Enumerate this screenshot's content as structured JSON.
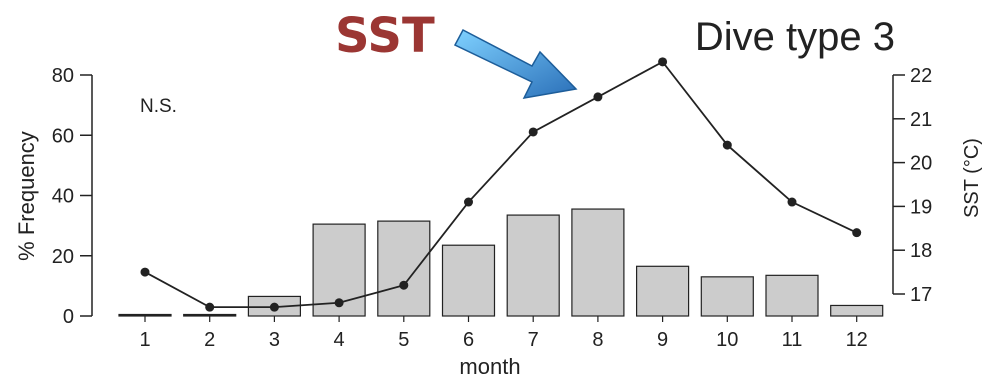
{
  "chart_data": {
    "type": "bar",
    "title": "Dive type 3",
    "annotation": "N.S.",
    "callout": {
      "label": "SST",
      "label_color": "#9b3633",
      "arrow_color": "#3a8fd6"
    },
    "categories": [
      "1",
      "2",
      "3",
      "4",
      "5",
      "6",
      "7",
      "8",
      "9",
      "10",
      "11",
      "12"
    ],
    "xlabel": "month",
    "ylabel": "% Frequency",
    "ylim": [
      0,
      80
    ],
    "yticks": [
      "0",
      "20",
      "40",
      "60",
      "80"
    ],
    "y2label": "SST (°C)",
    "y2lim": [
      17,
      22
    ],
    "y2ticks": [
      "17",
      "18",
      "19",
      "20",
      "21",
      "22"
    ],
    "series": [
      {
        "type": "bar",
        "values": [
          0.5,
          0.3,
          6.5,
          30.5,
          31.5,
          23.5,
          33.5,
          35.5,
          16.5,
          13,
          13.5,
          3.5
        ],
        "color": "#cccccc"
      },
      {
        "type": "line",
        "axis": "right",
        "values": [
          17.5,
          16.7,
          16.7,
          16.8,
          17.2,
          19.1,
          20.7,
          21.5,
          22.3,
          20.4,
          19.1,
          18.4
        ],
        "color": "#222222"
      }
    ],
    "grid": false
  }
}
